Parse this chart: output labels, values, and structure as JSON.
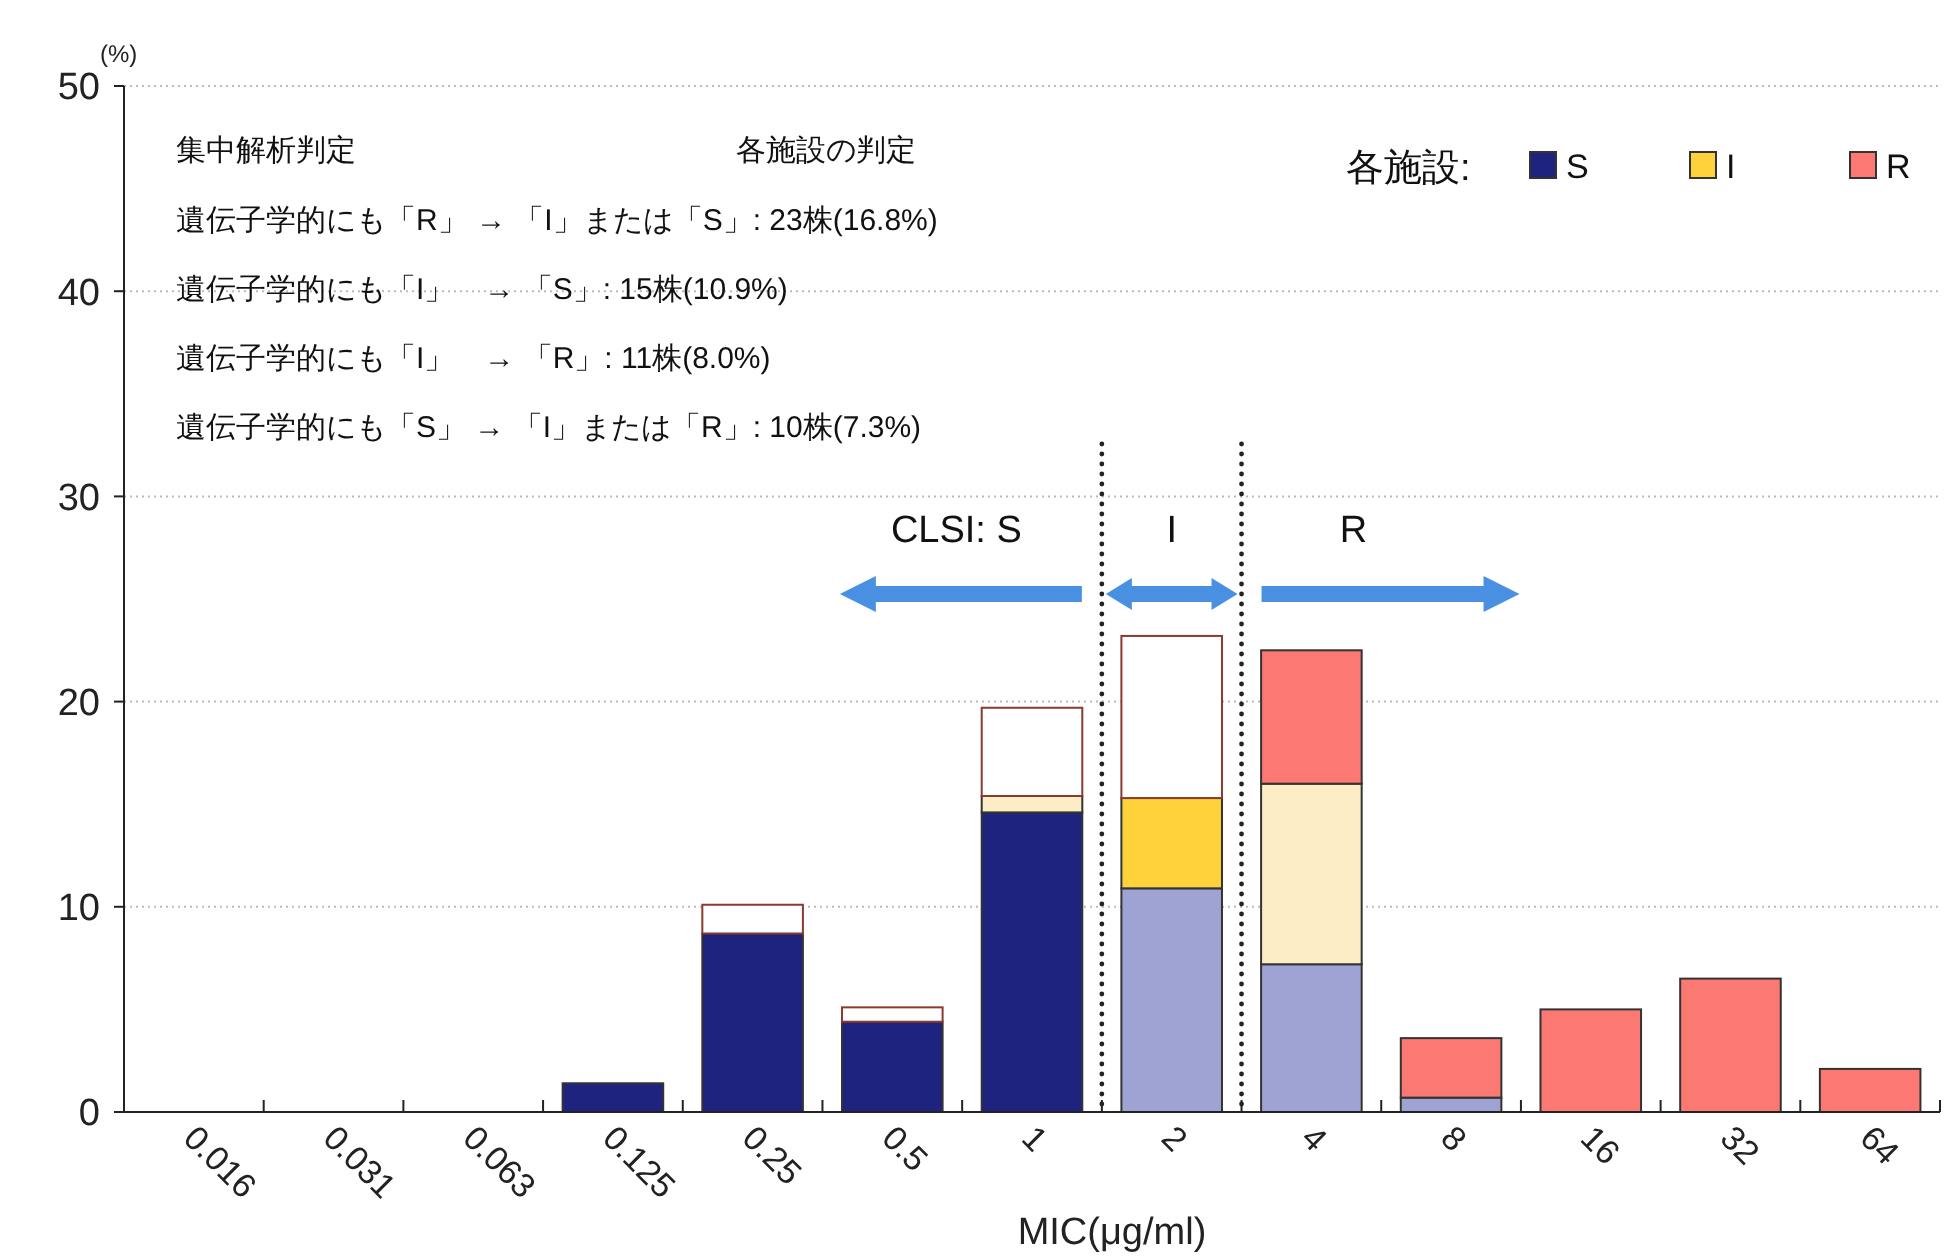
{
  "chart_data": {
    "type": "bar",
    "stacked": true,
    "ylabel": "(%)",
    "xlabel": "MIC(μg/ml)",
    "legend_title": "各施設:",
    "legend": "top right",
    "grid": "y",
    "categories": [
      "0.016",
      "0.031",
      "0.063",
      "0.125",
      "0.25",
      "0.5",
      "1",
      "2",
      "4",
      "8",
      "16",
      "32",
      "64"
    ],
    "ylim": [
      0,
      50
    ],
    "yticks": [
      0,
      10,
      20,
      30,
      40,
      50
    ],
    "series": [
      {
        "name": "S",
        "color": "#1f2380",
        "values": [
          null,
          null,
          null,
          1.4,
          8.7,
          4.4,
          14.6,
          null,
          null,
          null,
          null,
          null,
          null
        ]
      },
      {
        "color": "#9ea3d4",
        "values": [
          null,
          null,
          null,
          null,
          null,
          null,
          null,
          10.9,
          7.2,
          0.7,
          null,
          null,
          null
        ]
      },
      {
        "name": "I",
        "color": "#ffd23c",
        "values": [
          null,
          null,
          null,
          null,
          null,
          null,
          null,
          4.4,
          null,
          null,
          null,
          null,
          null
        ]
      },
      {
        "color": "#fdedc4",
        "values": [
          null,
          null,
          null,
          null,
          null,
          null,
          0.8,
          null,
          8.8,
          null,
          null,
          null,
          null
        ]
      },
      {
        "name": "R",
        "color": "#fb7873",
        "values": [
          null,
          null,
          null,
          null,
          null,
          null,
          null,
          null,
          6.5,
          2.9,
          5.0,
          6.5,
          2.1
        ]
      },
      {
        "color": "#ffffff",
        "values": [
          null,
          null,
          null,
          null,
          1.4,
          0.7,
          4.3,
          7.9,
          null,
          null,
          null,
          null,
          null
        ]
      }
    ],
    "annotations": [
      "集中解析判定",
      "各施設の判定",
      "遺伝子学的にも「R」 → 「I」または「S」: 23株(16.8%)",
      "遺伝子学的にも「I」　→ 「S」: 15株(10.9%)",
      "遺伝子学的にも「I」　→ 「R」: 11株(8.0%)",
      "遺伝子学的にも「S」 → 「I」または「R」: 10株(7.3%)",
      "CLSI:   S",
      "I",
      "R"
    ]
  }
}
